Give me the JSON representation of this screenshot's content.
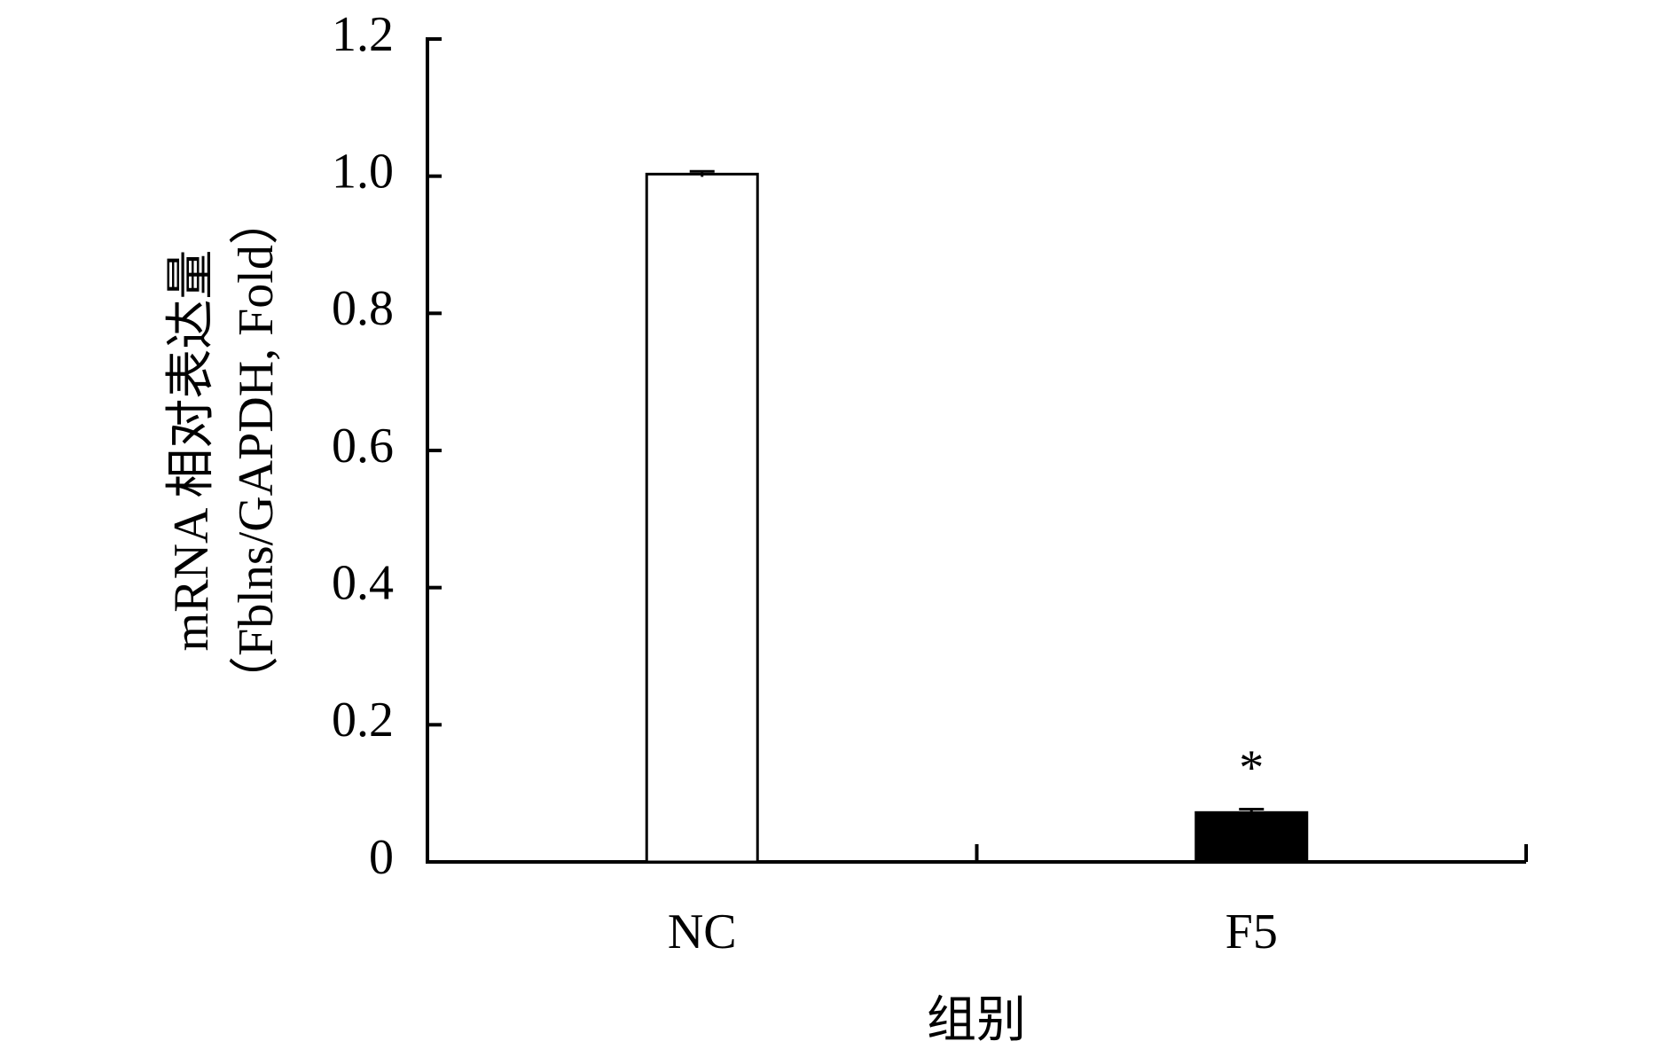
{
  "chart_data": {
    "type": "bar",
    "x_label": "组别",
    "y_label": [
      "mRNA 相对表达量",
      "（Fblns/GAPDH, Fold）"
    ],
    "categories": [
      "NC",
      "F5"
    ],
    "values": [
      1.003,
      0.072
    ],
    "errors": [
      0.004,
      0.005
    ],
    "colors": [
      "#ffffff",
      "#000000"
    ],
    "annotation": "*",
    "ylim": [
      0,
      1.2
    ],
    "yticks": [
      0,
      0.2,
      0.4,
      0.6,
      0.8,
      {
        "value": 1,
        "label": "1.0"
      },
      1.2
    ]
  }
}
